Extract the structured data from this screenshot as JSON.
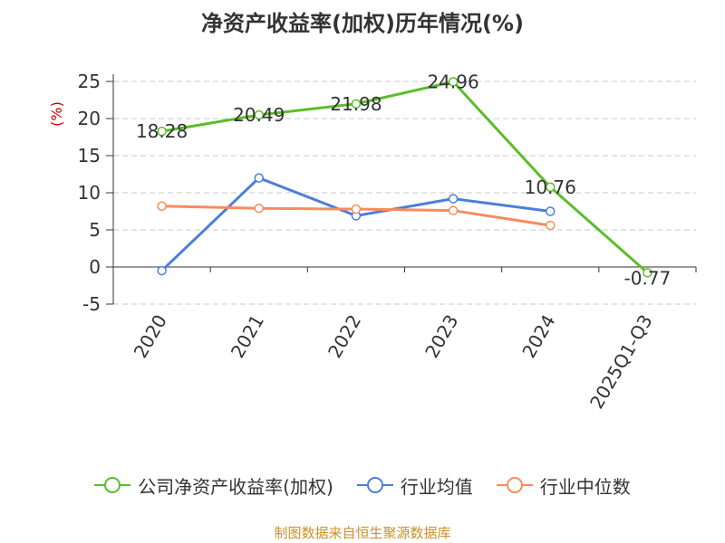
{
  "chart_data": {
    "type": "line",
    "title": "净资产收益率(加权)历年情况(%)",
    "ylabel": "(%)",
    "categories": [
      "2020",
      "2021",
      "2022",
      "2023",
      "2024",
      "2025Q1-Q3"
    ],
    "yticks": [
      "25",
      "20",
      "15",
      "10",
      "5",
      "0",
      "-5"
    ],
    "ylim": [
      -5,
      25
    ],
    "grid": true,
    "legend_position": "bottom",
    "series": [
      {
        "name": "公司净资产收益率(加权)",
        "color": "#5cbd29",
        "values": [
          18.28,
          20.49,
          21.98,
          24.96,
          10.76,
          -0.77
        ],
        "labels": [
          "18.28",
          "20.49",
          "21.98",
          "24.96",
          "10.76",
          "-0.77"
        ]
      },
      {
        "name": "行业均值",
        "color": "#4c7edb",
        "values": [
          -0.5,
          12.0,
          6.9,
          9.2,
          7.5,
          null
        ]
      },
      {
        "name": "行业中位数",
        "color": "#f78c5d",
        "values": [
          8.2,
          7.9,
          7.8,
          7.6,
          5.6,
          null
        ]
      }
    ]
  },
  "source": "制图数据来自恒生聚源数据库"
}
